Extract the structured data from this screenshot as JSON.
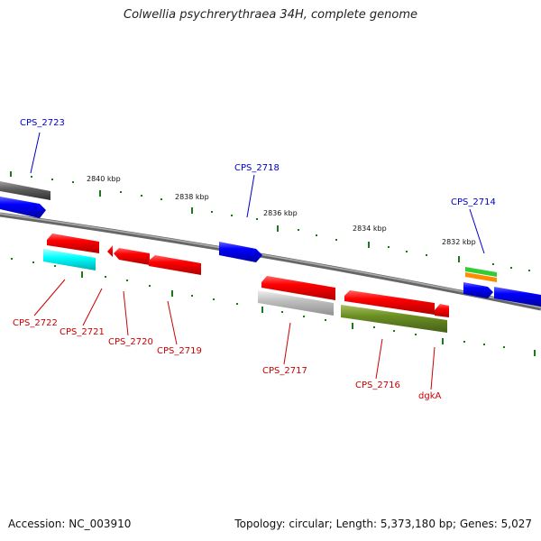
{
  "title": "Colwellia psychrerythraea 34H, complete genome",
  "accession": "Accession: NC_003910",
  "summary": "Topology: circular; Length: 5,373,180 bp; Genes: 5,027",
  "ticks": [
    "2840 kbp",
    "2838 kbp",
    "2836 kbp",
    "2834 kbp",
    "2832 kbp"
  ],
  "colors": {
    "blue_label": "#0000cc",
    "red_label": "#cc0000",
    "backbone": "#808080",
    "tick": "#1a7a1a"
  },
  "genes": [
    {
      "label": "CPS_2723",
      "strand": "forward",
      "color": "#0000cc",
      "fill": "#606060"
    },
    {
      "label": "CPS_2718",
      "strand": "forward",
      "color": "#0000cc",
      "fill": "#0000ff"
    },
    {
      "label": "CPS_2714",
      "strand": "forward",
      "color": "#0000cc",
      "fill": "#ff8c00"
    },
    {
      "label": "CPS_2722",
      "strand": "reverse",
      "color": "#cc0000",
      "fill": "#00ffff"
    },
    {
      "label": "CPS_2721",
      "strand": "reverse",
      "color": "#cc0000",
      "fill": "#ff0000"
    },
    {
      "label": "CPS_2720",
      "strand": "reverse",
      "color": "#cc0000",
      "fill": "#ff0000"
    },
    {
      "label": "CPS_2719",
      "strand": "reverse",
      "color": "#cc0000",
      "fill": "#ff0000"
    },
    {
      "label": "CPS_2717",
      "strand": "reverse",
      "color": "#cc0000",
      "fill": "#c0c0c0"
    },
    {
      "label": "CPS_2716",
      "strand": "reverse",
      "color": "#cc0000",
      "fill": "#6b8e23"
    },
    {
      "label": "dgkA",
      "strand": "reverse",
      "color": "#cc0000",
      "fill": "#ff0000"
    }
  ]
}
